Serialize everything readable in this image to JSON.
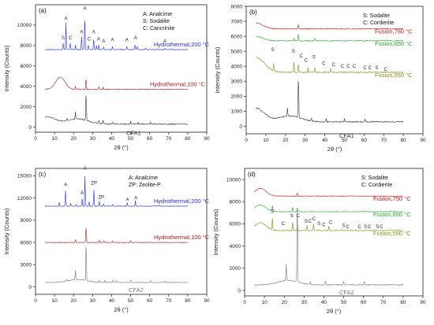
{
  "chart_data": [
    {
      "type": "line",
      "panel_label": "(a)",
      "ylabel": "Intensity (Counts)",
      "xlabel": "2θ (°)",
      "xlim": [
        0,
        90
      ],
      "ylim": [
        -500,
        12000
      ],
      "xticks": [
        0,
        10,
        20,
        30,
        40,
        50,
        60,
        70,
        80,
        90
      ],
      "yticks": [
        0,
        2000,
        4000,
        6000,
        8000,
        10000
      ],
      "legend": [
        "A: Analcime",
        "S: Sodalite",
        "C: Cancrinite"
      ],
      "series": [
        {
          "name": "Hydrothermal,200 °C",
          "color": "#1f2ee0",
          "baseline": 7600,
          "noise": 80,
          "peaks": [
            [
              14.5,
              600
            ],
            [
              16,
              2600
            ],
            [
              18.3,
              700
            ],
            [
              21,
              450
            ],
            [
              24.2,
              1300
            ],
            [
              25.9,
              3500
            ],
            [
              27.8,
              500
            ],
            [
              30.6,
              1200
            ],
            [
              32,
              400
            ],
            [
              33.2,
              500
            ],
            [
              35.8,
              300
            ],
            [
              40.5,
              300
            ],
            [
              48,
              300
            ],
            [
              52.3,
              500
            ],
            [
              53.5,
              300
            ],
            [
              58,
              200
            ],
            [
              68,
              150
            ]
          ]
        },
        {
          "name": "Hydrothermal,100 °C",
          "color": "#b01818",
          "baseline": 3700,
          "noise": 80,
          "hump": [
            [
              13,
              1200,
              3.5
            ]
          ],
          "peaks": [
            [
              21,
              300
            ],
            [
              26.6,
              1200
            ],
            [
              33.2,
              250
            ],
            [
              35.5,
              200
            ]
          ]
        },
        {
          "name": "CFA1",
          "color": "#333333",
          "baseline": 300,
          "noise": 100,
          "hump": [
            [
              6,
              700,
              6
            ],
            [
              22,
              500,
              8
            ]
          ],
          "peaks": [
            [
              16.5,
              200
            ],
            [
              21,
              700
            ],
            [
              26.6,
              3000
            ],
            [
              33.2,
              300
            ],
            [
              35.5,
              300
            ],
            [
              40.8,
              250
            ],
            [
              50,
              250
            ],
            [
              54,
              150
            ],
            [
              60.5,
              200
            ]
          ]
        }
      ],
      "peak_labels": [
        {
          "text": "S",
          "x": 14.5,
          "y": 8600
        },
        {
          "text": "A",
          "x": 16,
          "y": 10500
        },
        {
          "text": "C",
          "x": 18.3,
          "y": 8600
        },
        {
          "text": "A",
          "x": 24.2,
          "y": 9200
        },
        {
          "text": "A",
          "x": 25.9,
          "y": 11500
        },
        {
          "text": "C",
          "x": 28.2,
          "y": 8500
        },
        {
          "text": "A",
          "x": 30.6,
          "y": 9200
        },
        {
          "text": "A",
          "x": 33.2,
          "y": 8500
        },
        {
          "text": "A",
          "x": 35.8,
          "y": 8300
        },
        {
          "text": "A",
          "x": 40.5,
          "y": 8400
        },
        {
          "text": "A",
          "x": 48,
          "y": 8400
        },
        {
          "text": "A",
          "x": 52.5,
          "y": 8600
        },
        {
          "text": "A",
          "x": 68,
          "y": 8300
        }
      ]
    },
    {
      "type": "line",
      "panel_label": "(b)",
      "ylabel": "Intensity (Counts)",
      "xlabel": "2θ (°)",
      "xlim": [
        0,
        90
      ],
      "ylim": [
        -500,
        8000
      ],
      "xticks": [
        0,
        10,
        20,
        30,
        40,
        50,
        60,
        70,
        80,
        90
      ],
      "yticks": [
        0,
        1000,
        2000,
        3000,
        4000,
        5000,
        6000,
        7000,
        8000
      ],
      "legend": [
        "S: Sodalite",
        "C: Cordierite"
      ],
      "series": [
        {
          "name": "Fusion,750 °C",
          "color": "#cc1111",
          "baseline": 6500,
          "noise": 60,
          "hump": [
            [
              5,
              400,
              5
            ]
          ],
          "peaks": [
            [
              26.6,
              300
            ]
          ]
        },
        {
          "name": "Fusion,650 °C",
          "color": "#22aa22",
          "baseline": 5700,
          "noise": 60,
          "hump": [
            [
              5,
              300,
              5
            ]
          ],
          "peaks": [
            [
              24.3,
              200
            ],
            [
              26.6,
              500
            ],
            [
              35,
              150
            ]
          ]
        },
        {
          "name": "Fusion,550 °C",
          "color": "#8a8a10",
          "baseline": 3600,
          "noise": 70,
          "hump": [
            [
              5,
              1000,
              6
            ]
          ],
          "peaks": [
            [
              14,
              500
            ],
            [
              24.3,
              700
            ],
            [
              26.6,
              600
            ],
            [
              31.5,
              300
            ],
            [
              35,
              300
            ],
            [
              43,
              250
            ]
          ]
        },
        {
          "name": "CFA1",
          "color": "#333333",
          "baseline": 300,
          "noise": 80,
          "hump": [
            [
              5,
              900,
              6
            ],
            [
              22,
              400,
              8
            ]
          ],
          "peaks": [
            [
              21,
              500
            ],
            [
              26.6,
              3000
            ],
            [
              33.2,
              200
            ],
            [
              40.8,
              200
            ],
            [
              50,
              200
            ],
            [
              60.5,
              150
            ]
          ]
        }
      ],
      "peak_labels": [
        {
          "text": "S",
          "x": 13.5,
          "y": 5000
        },
        {
          "text": "S",
          "x": 24,
          "y": 4900
        },
        {
          "text": "C",
          "x": 28,
          "y": 4600
        },
        {
          "text": "C",
          "x": 30.5,
          "y": 4300
        },
        {
          "text": "S",
          "x": 34.5,
          "y": 4500
        },
        {
          "text": "C",
          "x": 39.5,
          "y": 4100
        },
        {
          "text": "C",
          "x": 44.5,
          "y": 4000
        },
        {
          "text": "C",
          "x": 49,
          "y": 3900
        },
        {
          "text": "C",
          "x": 52,
          "y": 3900
        },
        {
          "text": "C",
          "x": 55,
          "y": 3900
        },
        {
          "text": "C",
          "x": 60.5,
          "y": 3800
        },
        {
          "text": "C",
          "x": 63,
          "y": 3800
        },
        {
          "text": "S",
          "x": 66.5,
          "y": 3800
        },
        {
          "text": "C",
          "x": 71,
          "y": 3700
        }
      ]
    },
    {
      "type": "line",
      "panel_label": "(c)",
      "ylabel": "Intensity (Counts)",
      "xlabel": "2θ (°)",
      "xlim": [
        0,
        90
      ],
      "ylim": [
        -1000,
        16000
      ],
      "xticks": [
        0,
        10,
        20,
        30,
        40,
        50,
        60,
        70,
        80,
        90
      ],
      "yticks": [
        0,
        3000,
        6000,
        9000,
        12000,
        15000
      ],
      "legend": [
        "A:   Analcime",
        "ZP: Zeolite-P"
      ],
      "series": [
        {
          "name": "Hydrothermal,200 °C",
          "color": "#1f2ee0",
          "baseline": 10900,
          "noise": 90,
          "peaks": [
            [
              12.5,
              500
            ],
            [
              15.8,
              2200
            ],
            [
              18.5,
              400
            ],
            [
              21.5,
              300
            ],
            [
              24.5,
              1000
            ],
            [
              26,
              4000
            ],
            [
              28.2,
              600
            ],
            [
              30.7,
              2300
            ],
            [
              33.5,
              700
            ],
            [
              35.8,
              300
            ],
            [
              40.5,
              250
            ],
            [
              48.2,
              500
            ],
            [
              52.5,
              700
            ]
          ]
        },
        {
          "name": "Hydrothermal,100 °C",
          "color": "#b01818",
          "baseline": 6000,
          "noise": 70,
          "peaks": [
            [
              21,
              400
            ],
            [
              26.6,
              2400
            ],
            [
              33.5,
              300
            ],
            [
              36,
              250
            ],
            [
              40.5,
              200
            ],
            [
              50,
              200
            ]
          ]
        },
        {
          "name": "CFA2",
          "color": "#777777",
          "baseline": 600,
          "noise": 90,
          "hump": [
            [
              22,
              400,
              7
            ]
          ],
          "peaks": [
            [
              16.5,
              250
            ],
            [
              21,
              1300
            ],
            [
              26.6,
              5500
            ],
            [
              33.5,
              300
            ],
            [
              36.5,
              300
            ],
            [
              40.8,
              350
            ],
            [
              42.5,
              250
            ],
            [
              50,
              300
            ],
            [
              60.5,
              300
            ],
            [
              68,
              200
            ]
          ]
        }
      ],
      "peak_labels": [
        {
          "text": "A",
          "x": 15.8,
          "y": 13600
        },
        {
          "text": "A",
          "x": 24.5,
          "y": 12500
        },
        {
          "text": "A",
          "x": 26,
          "y": 15800
        },
        {
          "text": "ZP",
          "x": 30.7,
          "y": 13800
        },
        {
          "text": "ZP",
          "x": 34.5,
          "y": 11900
        },
        {
          "text": "A",
          "x": 48.3,
          "y": 11600
        },
        {
          "text": "A",
          "x": 52.8,
          "y": 11800
        }
      ]
    },
    {
      "type": "line",
      "panel_label": "(d)",
      "ylabel": "Intensity (Counts)",
      "xlabel": "2θ (°)",
      "xlim": [
        0,
        90
      ],
      "ylim": [
        -500,
        11000
      ],
      "xticks": [
        0,
        10,
        20,
        30,
        40,
        50,
        60,
        70,
        80,
        90
      ],
      "yticks": [
        0,
        2000,
        4000,
        6000,
        8000,
        10000
      ],
      "legend": [
        "S: Sodalite",
        "C: Cordierite"
      ],
      "series": [
        {
          "name": "Fusion,750 °C",
          "color": "#cc1111",
          "baseline": 8500,
          "noise": 60,
          "hump": [
            [
              8,
              700,
              4
            ]
          ],
          "peaks": [
            [
              26.6,
              300
            ]
          ]
        },
        {
          "name": "Fusion,650 °C",
          "color": "#22aa22",
          "baseline": 7100,
          "noise": 60,
          "hump": [
            [
              8,
              600,
              4
            ]
          ],
          "peaks": [
            [
              14,
              500
            ],
            [
              24.3,
              400
            ],
            [
              26.6,
              400
            ]
          ]
        },
        {
          "name": "Fusion,550 °C",
          "color": "#8a8a10",
          "baseline": 5400,
          "noise": 70,
          "hump": [
            [
              8,
              700,
              4
            ]
          ],
          "peaks": [
            [
              14,
              1000
            ],
            [
              24.3,
              800
            ],
            [
              26.6,
              600
            ],
            [
              31.5,
              500
            ],
            [
              34.8,
              600
            ],
            [
              42.5,
              400
            ]
          ]
        },
        {
          "name": "CFA2",
          "color": "#777777",
          "baseline": 500,
          "noise": 80,
          "hump": [
            [
              22,
              400,
              7
            ]
          ],
          "peaks": [
            [
              21,
              1500
            ],
            [
              26.6,
              8000
            ],
            [
              33.2,
              300
            ],
            [
              40.8,
              300
            ],
            [
              50,
              300
            ],
            [
              60.5,
              300
            ]
          ]
        }
      ],
      "peak_labels": [
        {
          "text": "S",
          "x": 14,
          "y": 7000
        },
        {
          "text": "C",
          "x": 19.5,
          "y": 5900
        },
        {
          "text": "S",
          "x": 23.8,
          "y": 6600
        },
        {
          "text": "C",
          "x": 27,
          "y": 6600
        },
        {
          "text": "S",
          "x": 31,
          "y": 6100
        },
        {
          "text": "C",
          "x": 33,
          "y": 6100
        },
        {
          "text": "C",
          "x": 35,
          "y": 6300
        },
        {
          "text": "S",
          "x": 37.5,
          "y": 5900
        },
        {
          "text": "C",
          "x": 40,
          "y": 5800
        },
        {
          "text": "C",
          "x": 43.5,
          "y": 6000
        },
        {
          "text": "S",
          "x": 50,
          "y": 5700
        },
        {
          "text": "C",
          "x": 52,
          "y": 5600
        },
        {
          "text": "C",
          "x": 58,
          "y": 5600
        },
        {
          "text": "S",
          "x": 61,
          "y": 5600
        },
        {
          "text": "C",
          "x": 63,
          "y": 5600
        },
        {
          "text": "S",
          "x": 67,
          "y": 5600
        },
        {
          "text": "C",
          "x": 69,
          "y": 5600
        }
      ]
    }
  ]
}
